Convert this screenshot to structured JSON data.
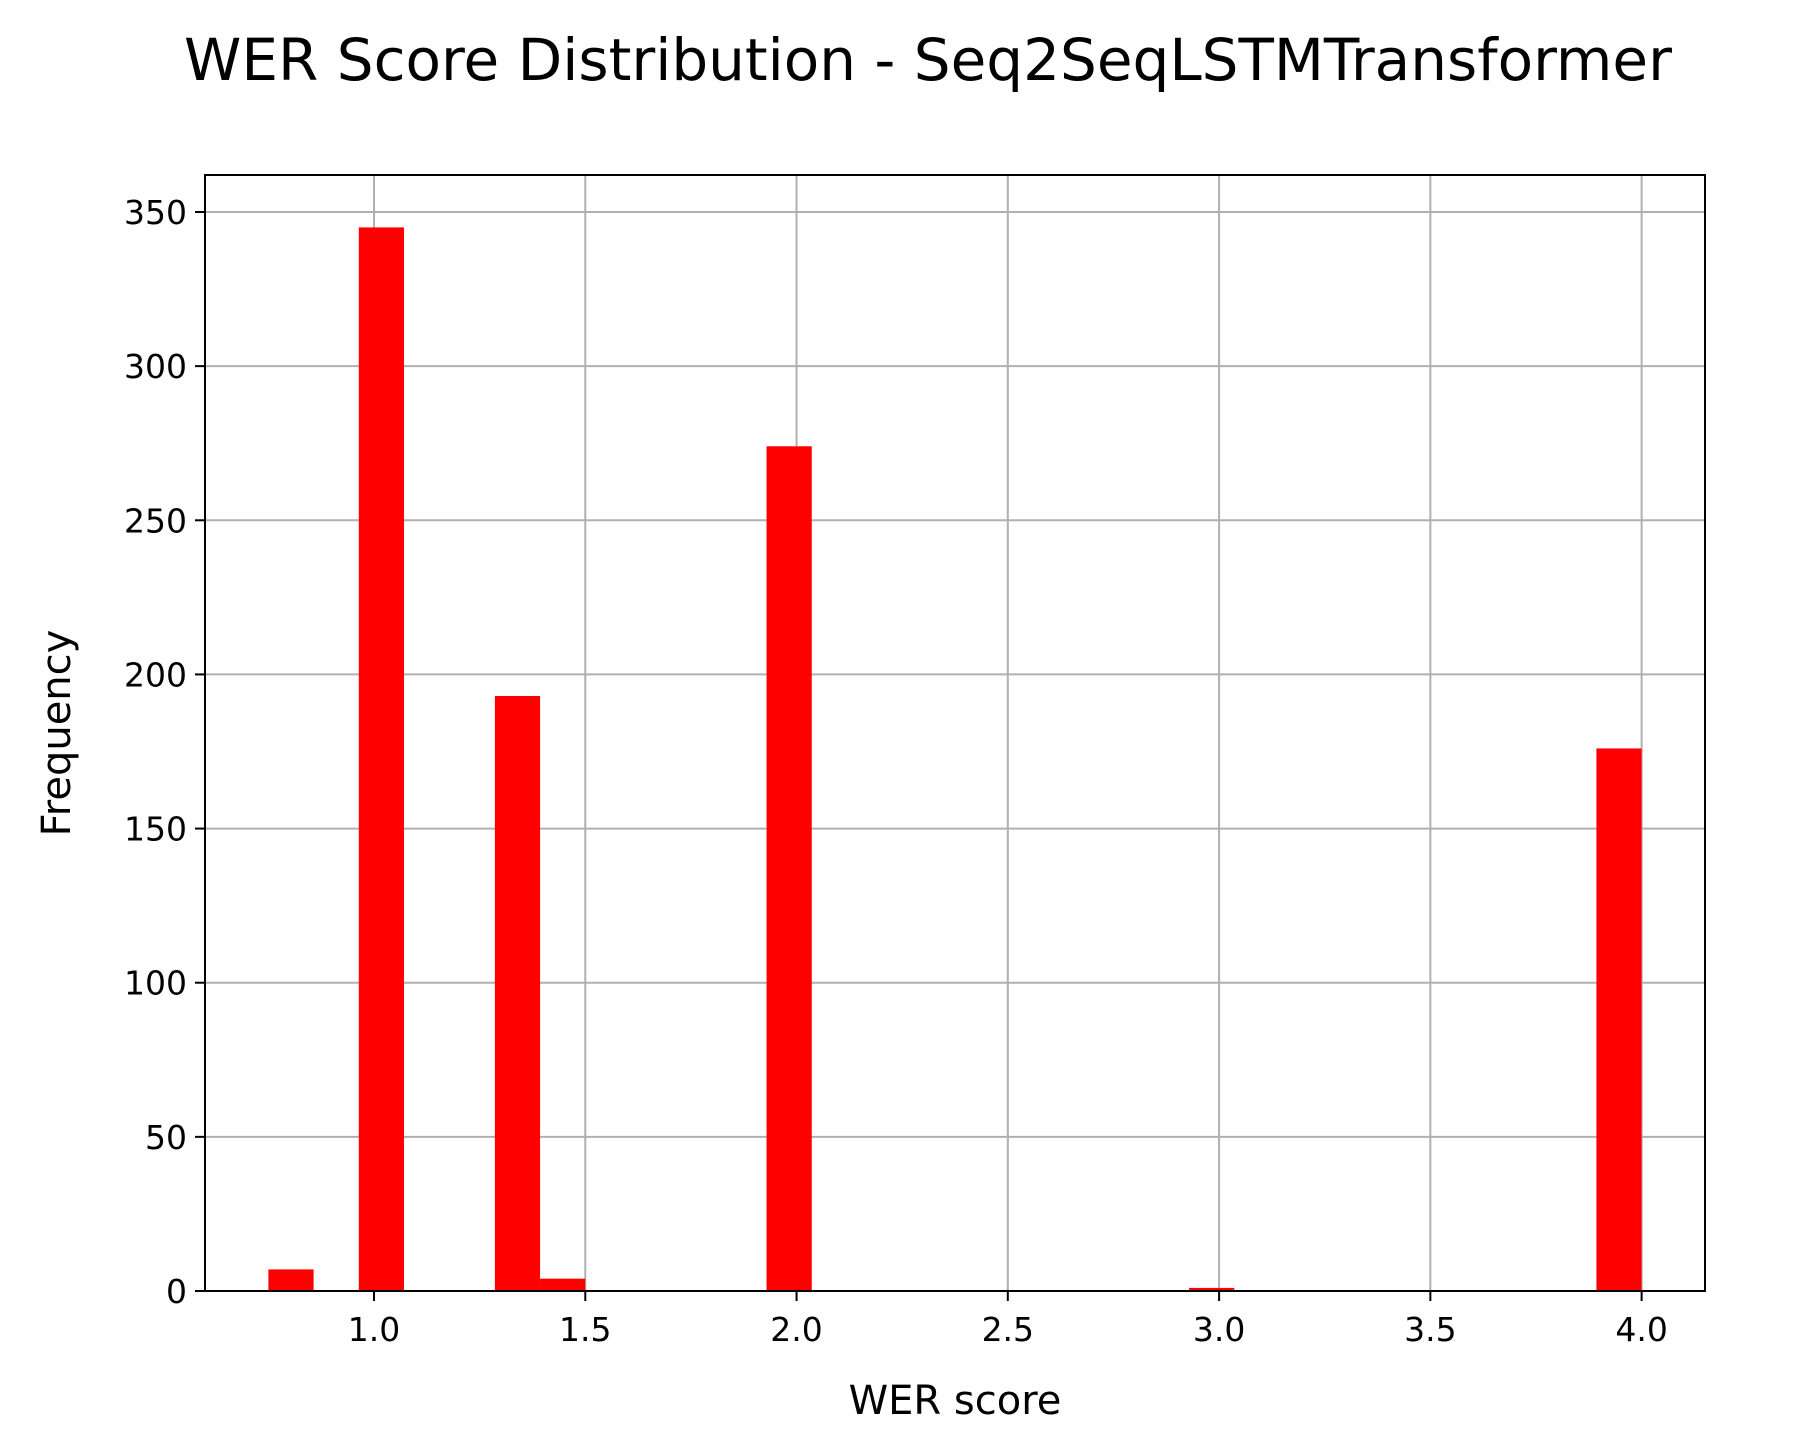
{
  "chart_data": {
    "type": "bar",
    "title": "WER Score Distribution - Seq2SeqLSTMTransformer",
    "xlabel": "WER score",
    "ylabel": "Frequency",
    "xlim": [
      0.6,
      4.15
    ],
    "ylim": [
      0,
      362
    ],
    "xticks": [
      1.0,
      1.5,
      2.0,
      2.5,
      3.0,
      3.5,
      4.0
    ],
    "xtick_labels": [
      "1.0",
      "1.5",
      "2.0",
      "2.5",
      "3.0",
      "3.5",
      "4.0"
    ],
    "yticks": [
      0,
      50,
      100,
      150,
      200,
      250,
      300,
      350
    ],
    "ytick_labels": [
      "0",
      "50",
      "100",
      "150",
      "200",
      "250",
      "300",
      "350"
    ],
    "grid": true,
    "bar_color": "#ff0000",
    "bins": [
      {
        "x0": 0.75,
        "x1": 0.857,
        "value": 7
      },
      {
        "x0": 0.964,
        "x1": 1.071,
        "value": 345
      },
      {
        "x0": 1.286,
        "x1": 1.393,
        "value": 193
      },
      {
        "x0": 1.393,
        "x1": 1.5,
        "value": 4
      },
      {
        "x0": 1.929,
        "x1": 2.036,
        "value": 274
      },
      {
        "x0": 2.929,
        "x1": 3.036,
        "value": 1
      },
      {
        "x0": 3.893,
        "x1": 4.0,
        "value": 176
      }
    ]
  }
}
